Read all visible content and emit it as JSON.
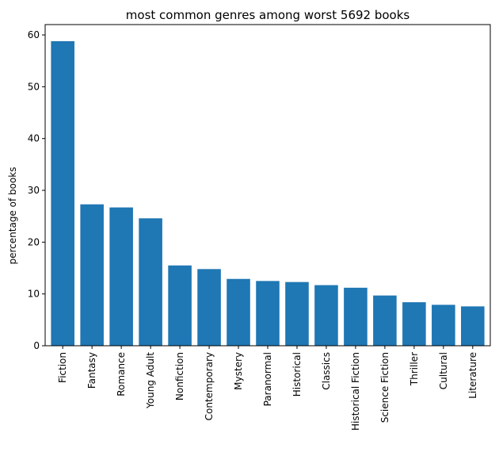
{
  "chart_data": {
    "type": "bar",
    "title": "most common genres among worst 5692 books",
    "xlabel": "",
    "ylabel": "percentage of books",
    "ylim": [
      0,
      62
    ],
    "yticks": [
      0,
      10,
      20,
      30,
      40,
      50,
      60
    ],
    "categories": [
      "Fiction",
      "Fantasy",
      "Romance",
      "Young Adult",
      "Nonfiction",
      "Contemporary",
      "Mystery",
      "Paranormal",
      "Historical",
      "Classics",
      "Historical Fiction",
      "Science Fiction",
      "Thriller",
      "Cultural",
      "Literature"
    ],
    "values": [
      58.8,
      27.3,
      26.7,
      24.6,
      15.5,
      14.8,
      12.9,
      12.5,
      12.3,
      11.7,
      11.2,
      9.7,
      8.4,
      7.9,
      7.6
    ],
    "grid": false,
    "bar_color": "#1f77b4"
  }
}
